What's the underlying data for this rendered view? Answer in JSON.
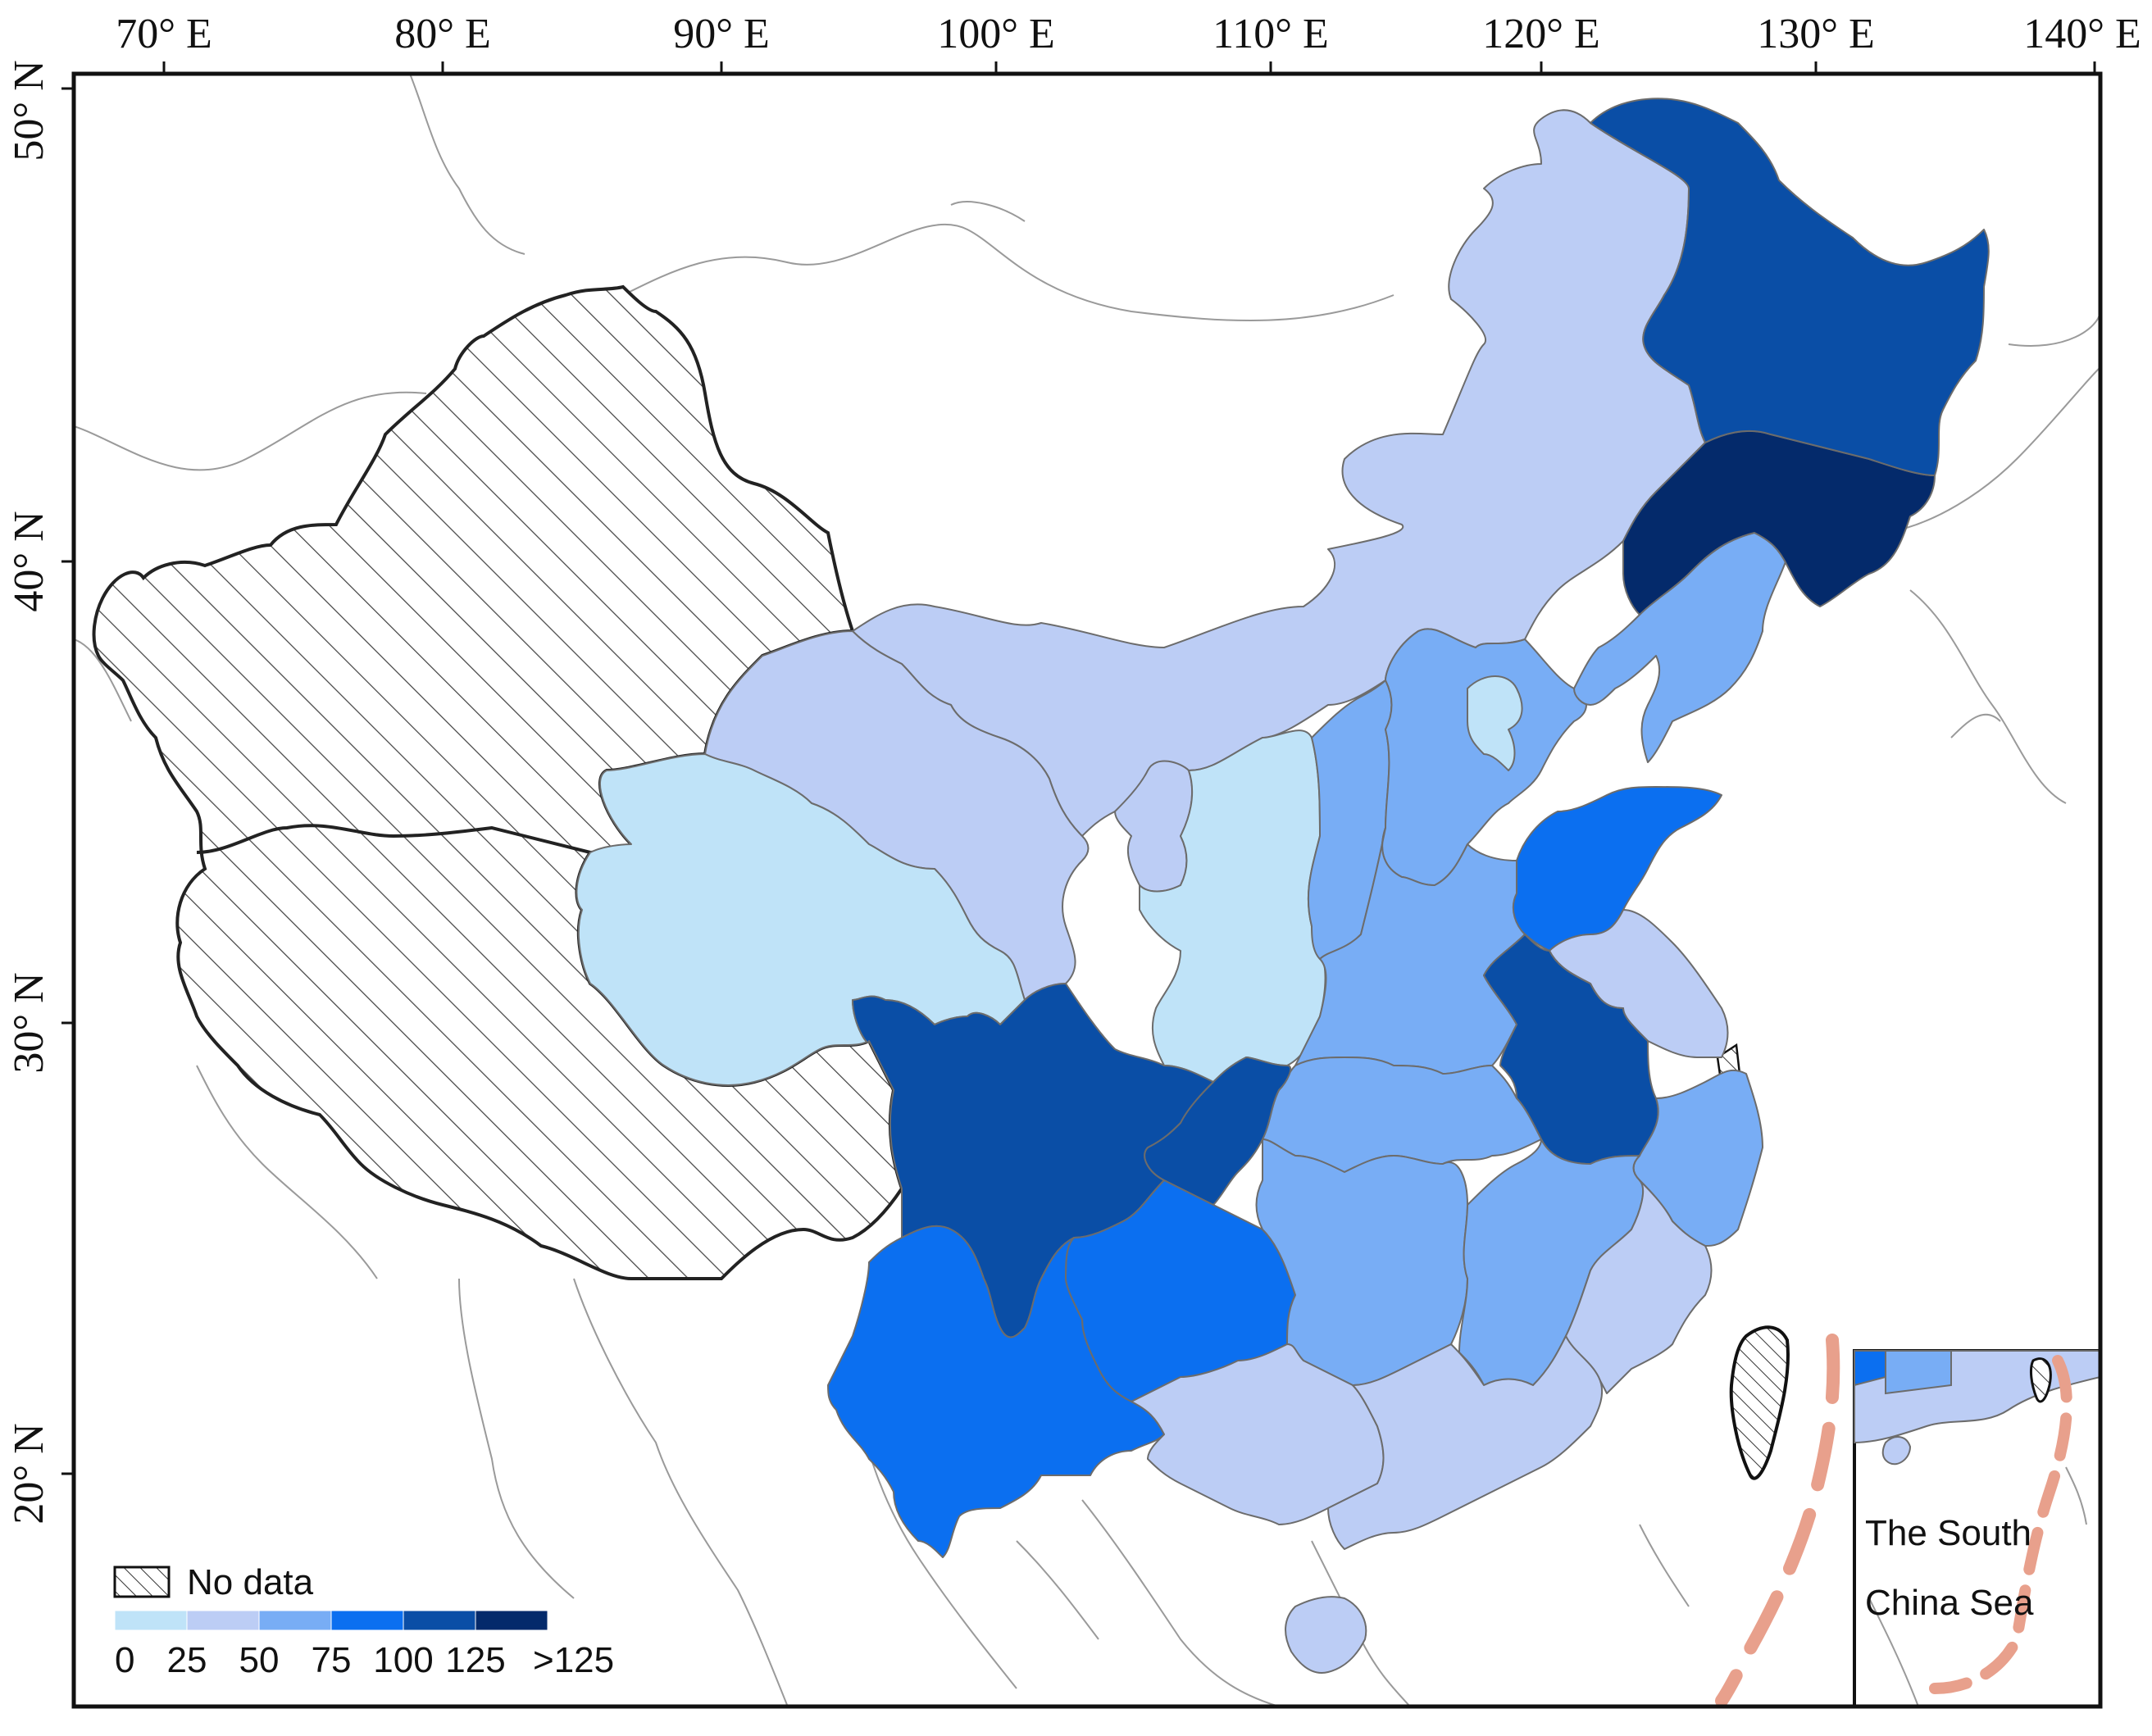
{
  "map": {
    "longitude_labels": [
      "70° E",
      "80° E",
      "90° E",
      "100° E",
      "110° E",
      "120° E",
      "130° E",
      "140° E"
    ],
    "latitude_labels": [
      "50° N",
      "40° N",
      "30° N",
      "20° N"
    ],
    "legend": {
      "no_data_label": "No data",
      "bin_labels": [
        "0",
        "25",
        "50",
        "75",
        "100",
        "125",
        ">125"
      ],
      "bin_colors": [
        "#bfe3f8",
        "#bccdf5",
        "#78adf5",
        "#0b6ff0",
        "#0a4ea6",
        "#042a6b"
      ],
      "no_data_pattern": "diagonal-hatch"
    },
    "inset": {
      "title_line1": "The South",
      "title_line2": "China Sea"
    },
    "colors": {
      "boundary_line": "#7a7a7a",
      "outline": "#222222",
      "dashed_line": "#e8a08c"
    }
  }
}
